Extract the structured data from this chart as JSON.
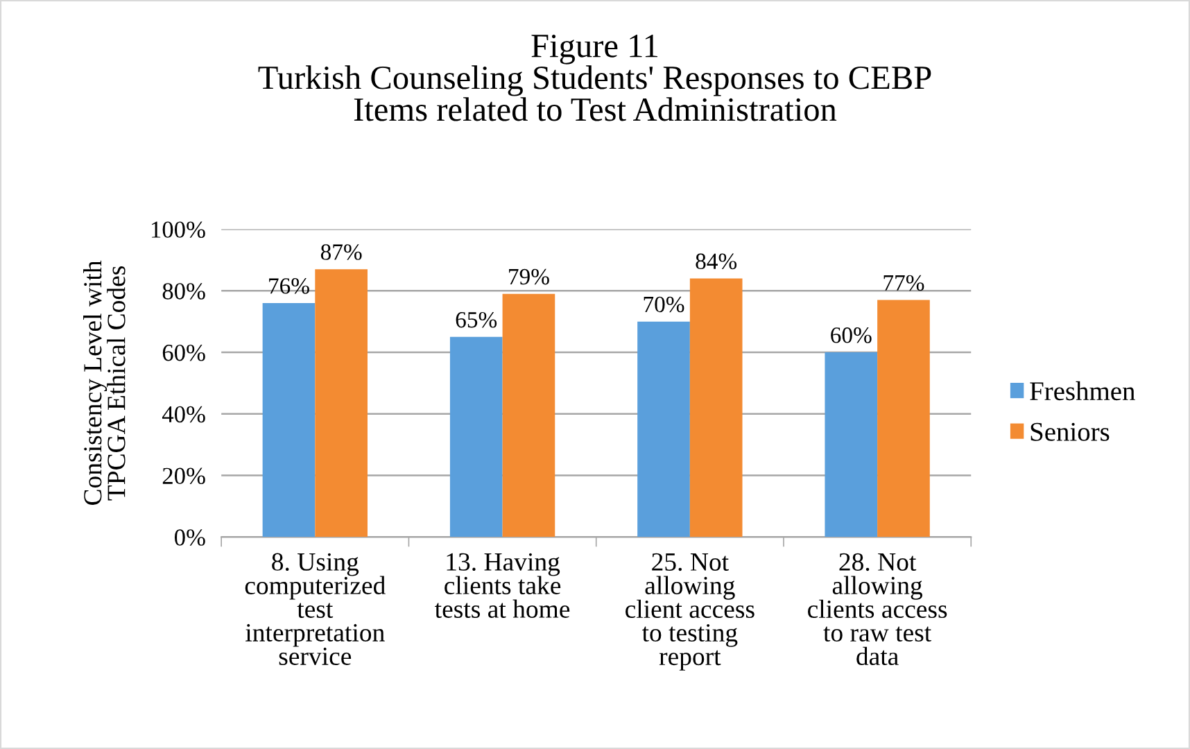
{
  "chart_data": {
    "type": "bar",
    "title": "Figure 11\nTurkish Counseling Students' Responses to CEBP\nItems related to Test Administration",
    "ylabel": "Consistency Level with\nTPCGA Ethical Codes",
    "categories": [
      "8. Using\ncomputerized\ntest\ninterpretation\nservice",
      "13. Having\nclients take\ntests at home",
      "25. Not\nallowing\nclient access\nto testing\nreport",
      "28. Not\nallowing\nclients access\nto raw test\ndata"
    ],
    "series": [
      {
        "name": "Freshmen",
        "color": "#5a9fdc",
        "values": [
          76,
          65,
          70,
          60
        ],
        "value_labels": [
          "76%",
          "65%",
          "70%",
          "60%"
        ]
      },
      {
        "name": "Seniors",
        "color": "#f38b32",
        "values": [
          87,
          79,
          84,
          77
        ],
        "value_labels": [
          "87%",
          "79%",
          "84%",
          "77%"
        ]
      }
    ],
    "ylim": [
      0,
      100
    ],
    "yticks": [
      {
        "value": 0,
        "label": "0%"
      },
      {
        "value": 20,
        "label": "20%"
      },
      {
        "value": 40,
        "label": "40%"
      },
      {
        "value": 60,
        "label": "60%"
      },
      {
        "value": 80,
        "label": "80%"
      },
      {
        "value": 100,
        "label": "100%"
      }
    ],
    "grid": "y",
    "legend": "right"
  }
}
